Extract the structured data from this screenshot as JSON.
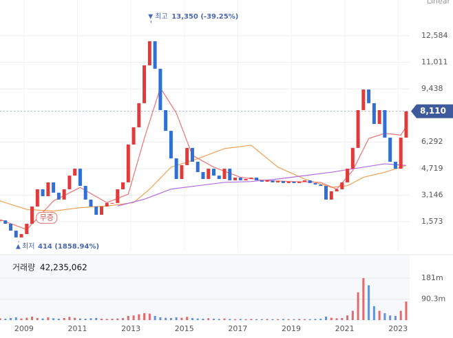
{
  "chart_data": {
    "type": "candlestick",
    "scale_label": "Linear",
    "x": [
      2008.1,
      2008.3,
      2008.5,
      2008.7,
      2008.9,
      2009.1,
      2009.3,
      2009.5,
      2009.7,
      2009.9,
      2010.1,
      2010.3,
      2010.5,
      2010.7,
      2010.9,
      2011.1,
      2011.3,
      2011.5,
      2011.7,
      2011.9,
      2012.1,
      2012.3,
      2012.5,
      2012.7,
      2012.9,
      2013.1,
      2013.3,
      2013.5,
      2013.7,
      2013.9,
      2014.1,
      2014.3,
      2014.5,
      2014.7,
      2014.9,
      2015.1,
      2015.3,
      2015.5,
      2015.7,
      2015.9,
      2016.1,
      2016.3,
      2016.5,
      2016.7,
      2016.9,
      2017.1,
      2017.3,
      2017.5,
      2017.7,
      2017.9,
      2018.1,
      2018.3,
      2018.5,
      2018.7,
      2018.9,
      2019.1,
      2019.3,
      2019.5,
      2019.7,
      2019.9,
      2020.1,
      2020.3,
      2020.5,
      2020.7,
      2020.9,
      2021.1,
      2021.3,
      2021.5,
      2021.7,
      2021.9,
      2022.1,
      2022.3,
      2022.5,
      2022.7,
      2022.9,
      2023.1,
      2023.3
    ],
    "close": [
      1650,
      1450,
      1040,
      640,
      840,
      1450,
      2470,
      3490,
      3080,
      3900,
      3290,
      2880,
      3490,
      4300,
      4710,
      3690,
      2880,
      2470,
      1980,
      2470,
      2680,
      2680,
      3490,
      3900,
      6140,
      7160,
      8590,
      10830,
      12260,
      10630,
      8180,
      6950,
      5320,
      4100,
      4920,
      5940,
      5120,
      4510,
      4100,
      4710,
      4300,
      4100,
      4710,
      4020,
      4180,
      4020,
      4100,
      4180,
      4020,
      3940,
      4020,
      3900,
      3980,
      3860,
      3940,
      3860,
      3940,
      4020,
      3860,
      3770,
      3690,
      2880,
      3370,
      3490,
      3900,
      4710,
      5940,
      8180,
      9400,
      8590,
      7360,
      8180,
      6550,
      5120,
      4710,
      6550,
      8110
    ],
    "volume": [
      8000000,
      6000000,
      9000000,
      12000000,
      7000000,
      10000000,
      15000000,
      9000000,
      7000000,
      12000000,
      8000000,
      6000000,
      9000000,
      14000000,
      10000000,
      7000000,
      6000000,
      8000000,
      9000000,
      6000000,
      5000000,
      6000000,
      7000000,
      9000000,
      18000000,
      20000000,
      25000000,
      30000000,
      28000000,
      18000000,
      12000000,
      10000000,
      9000000,
      12000000,
      10000000,
      14000000,
      9000000,
      7000000,
      6000000,
      8000000,
      6000000,
      5000000,
      7000000,
      5000000,
      4000000,
      5000000,
      4000000,
      5000000,
      4000000,
      4000000,
      5000000,
      4000000,
      4000000,
      5000000,
      4000000,
      4000000,
      5000000,
      4000000,
      4000000,
      5000000,
      6000000,
      15000000,
      10000000,
      8000000,
      9000000,
      20000000,
      40000000,
      120000000,
      181000000,
      150000000,
      60000000,
      40000000,
      30000000,
      20000000,
      18000000,
      40000000,
      80000000
    ],
    "up_color": "#e03a3a",
    "down_color": "#2f6fd6",
    "lines": [
      {
        "color": "#f0a050",
        "x": [
          2008.1,
          2009.1,
          2010.1,
          2011.1,
          2012.1,
          2013.1,
          2013.7,
          2014.5,
          2015.5,
          2016.5,
          2017.5,
          2018.5,
          2019.5,
          2020.5,
          2021.1,
          2021.7,
          2022.5,
          2023.3
        ],
        "values": [
          2800,
          2300,
          2200,
          2400,
          2500,
          2700,
          3500,
          4800,
          5300,
          5900,
          6100,
          4800,
          4100,
          3600,
          3700,
          4200,
          4500,
          4900
        ]
      },
      {
        "color": "#b36ae0",
        "x": [
          2012.5,
          2013.5,
          2014.5,
          2015.5,
          2016.5,
          2017.5,
          2018.5,
          2019.5,
          2020.5,
          2021.5,
          2022.5,
          2023.3
        ],
        "values": [
          2500,
          2900,
          3500,
          3700,
          3900,
          3950,
          4100,
          4300,
          4500,
          4750,
          5000,
          4900
        ]
      },
      {
        "color": "#f07070",
        "x": [
          2008.1,
          2009.1,
          2010.1,
          2011.1,
          2012.1,
          2012.9,
          2013.5,
          2014.1,
          2014.7,
          2015.3,
          2016.1,
          2017.1,
          2018.1,
          2019.1,
          2020.1,
          2020.7,
          2021.3,
          2021.9,
          2022.5,
          2023.1,
          2023.3
        ],
        "values": [
          1700,
          1100,
          2800,
          3600,
          2700,
          3200,
          6500,
          9500,
          8000,
          5500,
          4800,
          4200,
          4000,
          3950,
          3900,
          3500,
          4600,
          6500,
          6800,
          6700,
          7200
        ]
      }
    ],
    "xlim": [
      2008.1,
      2023.43
    ],
    "xticks": [
      2009,
      2011,
      2013,
      2015,
      2017,
      2019,
      2021,
      2023
    ],
    "ylim": [
      -180,
      14700
    ],
    "yticks": [
      {
        "value": 1573,
        "label": "1,573"
      },
      {
        "value": 3146,
        "label": "3,146"
      },
      {
        "value": 4719,
        "label": "4,719"
      },
      {
        "value": 6292,
        "label": "6,292"
      },
      {
        "value": 9438,
        "label": "9,438"
      },
      {
        "value": 11011,
        "label": "11,011"
      },
      {
        "value": 12584,
        "label": "12,584"
      }
    ],
    "high": 13350,
    "high_x": 2013.75,
    "high_prefix": "최고",
    "high_label": "13,350 (-39.25%)",
    "low": 414,
    "low_x": 2008.8,
    "low_prefix": "최저",
    "low_label": "414 (1858.94%)",
    "last": 8110,
    "last_label": "8,110",
    "annotation": "무증",
    "annotation_x": 2009.9,
    "annotation_y": 1800,
    "volume_title": "거래량",
    "volume_total": {
      "value": 42235062,
      "label": "42,235,062"
    },
    "vlim": [
      0,
      264000000
    ],
    "vticks": [
      {
        "value": 90300000,
        "label": "90.3m"
      },
      {
        "value": 181000000,
        "label": "181m"
      }
    ]
  }
}
